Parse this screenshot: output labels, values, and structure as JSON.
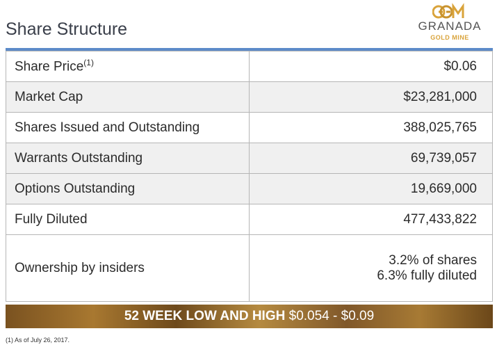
{
  "title": "Share Structure",
  "logo": {
    "name": "GRANADA",
    "sub": "GOLD MINE"
  },
  "rows": [
    {
      "label": "Share Price",
      "sup": "(1)",
      "value": "$0.06"
    },
    {
      "label": "Market Cap",
      "value": "$23,281,000"
    },
    {
      "label": "Shares Issued and Outstanding",
      "value": "388,025,765"
    },
    {
      "label": "Warrants Outstanding",
      "value": "69,739,057"
    },
    {
      "label": "Options Outstanding",
      "value": "19,669,000"
    },
    {
      "label": "Fully Diluted",
      "value": "477,433,822"
    },
    {
      "label": "Ownership by insiders",
      "value_line1": "3.2% of shares",
      "value_line2": "6.3% fully diluted"
    }
  ],
  "banner": {
    "strong": "52 WEEK LOW AND HIGH",
    "range": " $0.054 - $0.09"
  },
  "footnote": "(1) As of July 26, 2017."
}
